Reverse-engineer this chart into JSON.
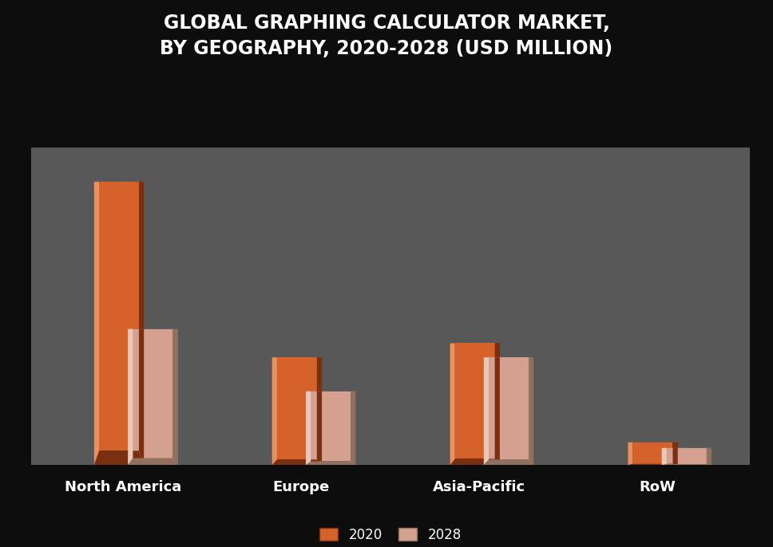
{
  "title": "GLOBAL GRAPHING CALCULATOR MARKET,\nBY GEOGRAPHY, 2020-2028 (USD MILLION)",
  "categories": [
    "North America",
    "Europe",
    "Asia-Pacific",
    "RoW"
  ],
  "values_2020": [
    100,
    38,
    43,
    8
  ],
  "values_2028": [
    48,
    26,
    38,
    6.0
  ],
  "color_2020_main": "#D4622A",
  "color_2020_dark": "#7A3010",
  "color_2020_light": "#E89060",
  "color_2028_main": "#D4A090",
  "color_2028_dark": "#907060",
  "color_2028_light": "#EAC8B8",
  "background_plot": "#585858",
  "background_outer": "#0D0D0D",
  "title_color": "#FFFFFF",
  "tick_label_color": "#FFFFFF",
  "legend_labels": [
    "2020",
    "2028"
  ],
  "bar_width": 0.28,
  "bevel": 0.025
}
